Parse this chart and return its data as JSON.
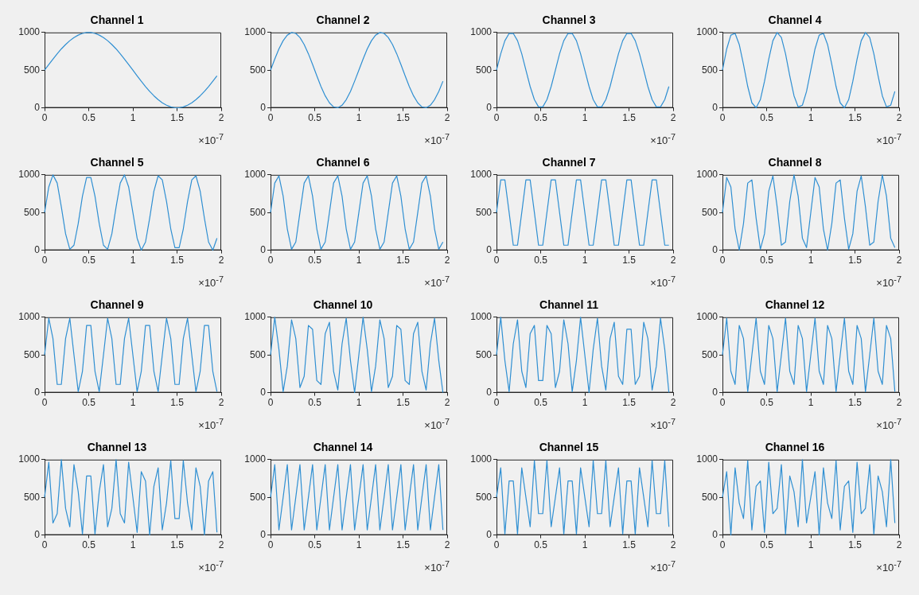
{
  "chart_data": [
    {
      "type": "line",
      "title": "Channel 1",
      "xlabel": "×10$^{-7}$",
      "color": "#2f8fd2",
      "xlim": [
        0,
        2
      ],
      "xticks": [
        0,
        0.5,
        1,
        1.5,
        2
      ],
      "ylim": [
        0,
        1000
      ],
      "yticks": [
        0,
        500,
        1000
      ],
      "x": [
        0,
        0.048,
        0.095,
        0.143,
        0.19,
        0.238,
        0.286,
        0.333,
        0.381,
        0.429,
        0.476,
        0.524,
        0.571,
        0.619,
        0.667,
        0.714,
        0.762,
        0.81,
        0.857,
        0.905,
        0.952,
        1,
        1.048,
        1.095,
        1.143,
        1.19,
        1.238,
        1.286,
        1.333,
        1.381,
        1.429,
        1.476,
        1.524,
        1.571,
        1.619,
        1.667,
        1.714,
        1.762,
        1.81,
        1.857,
        1.905,
        1.952
      ],
      "values": [
        500,
        575,
        647,
        717,
        782,
        840,
        891,
        933,
        965,
        987,
        999,
        999,
        987,
        965,
        933,
        891,
        840,
        782,
        717,
        647,
        575,
        500,
        425,
        353,
        283,
        218,
        160,
        109,
        67,
        35,
        13,
        1,
        1,
        13,
        35,
        67,
        109,
        160,
        218,
        283,
        353,
        425
      ]
    },
    {
      "type": "line",
      "title": "Channel 2",
      "xlabel": "×10$^{-7}$",
      "color": "#2f8fd2",
      "xlim": [
        0,
        2
      ],
      "xticks": [
        0,
        0.5,
        1,
        1.5,
        2
      ],
      "ylim": [
        0,
        1000
      ],
      "yticks": [
        0,
        500,
        1000
      ],
      "x": [
        0,
        0.048,
        0.095,
        0.143,
        0.19,
        0.238,
        0.286,
        0.333,
        0.381,
        0.429,
        0.476,
        0.524,
        0.571,
        0.619,
        0.667,
        0.714,
        0.762,
        0.81,
        0.857,
        0.905,
        0.952,
        1,
        1.048,
        1.095,
        1.143,
        1.19,
        1.238,
        1.286,
        1.333,
        1.381,
        1.429,
        1.476,
        1.524,
        1.571,
        1.619,
        1.667,
        1.714,
        1.762,
        1.81,
        1.857,
        1.905,
        1.952
      ],
      "values": [
        500,
        647,
        782,
        891,
        965,
        999,
        987,
        933,
        840,
        717,
        575,
        425,
        283,
        160,
        67,
        13,
        1,
        35,
        109,
        218,
        353,
        500,
        647,
        782,
        891,
        965,
        999,
        987,
        933,
        840,
        717,
        575,
        425,
        283,
        160,
        67,
        13,
        1,
        35,
        109,
        218,
        353
      ]
    },
    {
      "type": "line",
      "title": "Channel 3",
      "xlabel": "×10$^{-7}$",
      "color": "#2f8fd2",
      "xlim": [
        0,
        2
      ],
      "xticks": [
        0,
        0.5,
        1,
        1.5,
        2
      ],
      "ylim": [
        0,
        1000
      ],
      "yticks": [
        0,
        500,
        1000
      ],
      "x": [
        0,
        0.048,
        0.095,
        0.143,
        0.19,
        0.238,
        0.286,
        0.333,
        0.381,
        0.429,
        0.476,
        0.524,
        0.571,
        0.619,
        0.667,
        0.714,
        0.762,
        0.81,
        0.857,
        0.905,
        0.952,
        1,
        1.048,
        1.095,
        1.143,
        1.19,
        1.238,
        1.286,
        1.333,
        1.381,
        1.429,
        1.476,
        1.524,
        1.571,
        1.619,
        1.667,
        1.714,
        1.762,
        1.81,
        1.857,
        1.905,
        1.952
      ],
      "values": [
        500,
        717,
        891,
        987,
        987,
        891,
        717,
        500,
        283,
        109,
        13,
        13,
        109,
        283,
        500,
        717,
        891,
        987,
        987,
        891,
        717,
        500,
        283,
        109,
        13,
        13,
        109,
        283,
        500,
        717,
        891,
        987,
        987,
        891,
        717,
        500,
        283,
        109,
        13,
        13,
        109,
        283
      ]
    },
    {
      "type": "line",
      "title": "Channel 4",
      "xlabel": "×10$^{-7}$",
      "color": "#2f8fd2",
      "xlim": [
        0,
        2
      ],
      "xticks": [
        0,
        0.5,
        1,
        1.5,
        2
      ],
      "ylim": [
        0,
        1000
      ],
      "yticks": [
        0,
        500,
        1000
      ],
      "x": [
        0,
        0.048,
        0.095,
        0.143,
        0.19,
        0.238,
        0.286,
        0.333,
        0.381,
        0.429,
        0.476,
        0.524,
        0.571,
        0.619,
        0.667,
        0.714,
        0.762,
        0.81,
        0.857,
        0.905,
        0.952,
        1,
        1.048,
        1.095,
        1.143,
        1.19,
        1.238,
        1.286,
        1.333,
        1.381,
        1.429,
        1.476,
        1.524,
        1.571,
        1.619,
        1.667,
        1.714,
        1.762,
        1.81,
        1.857,
        1.905,
        1.952
      ],
      "values": [
        500,
        782,
        965,
        987,
        840,
        575,
        283,
        67,
        1,
        109,
        353,
        647,
        891,
        999,
        933,
        717,
        425,
        160,
        13,
        35,
        218,
        500,
        782,
        965,
        987,
        840,
        575,
        283,
        67,
        1,
        109,
        353,
        647,
        891,
        999,
        933,
        717,
        425,
        160,
        13,
        35,
        218
      ]
    },
    {
      "type": "line",
      "title": "Channel 5",
      "xlabel": "×10$^{-7}$",
      "color": "#2f8fd2",
      "xlim": [
        0,
        2
      ],
      "xticks": [
        0,
        0.5,
        1,
        1.5,
        2
      ],
      "ylim": [
        0,
        1000
      ],
      "yticks": [
        0,
        500,
        1000
      ],
      "x": [
        0,
        0.048,
        0.095,
        0.143,
        0.19,
        0.238,
        0.286,
        0.333,
        0.381,
        0.429,
        0.476,
        0.524,
        0.571,
        0.619,
        0.667,
        0.714,
        0.762,
        0.81,
        0.857,
        0.905,
        0.952,
        1,
        1.048,
        1.095,
        1.143,
        1.19,
        1.238,
        1.286,
        1.333,
        1.381,
        1.429,
        1.476,
        1.524,
        1.571,
        1.619,
        1.667,
        1.714,
        1.762,
        1.81,
        1.857,
        1.905,
        1.952
      ],
      "values": [
        500,
        840,
        999,
        891,
        575,
        218,
        13,
        67,
        353,
        717,
        965,
        965,
        717,
        353,
        67,
        13,
        218,
        575,
        891,
        999,
        840,
        500,
        160,
        1,
        109,
        425,
        782,
        987,
        933,
        647,
        283,
        35,
        35,
        283,
        647,
        933,
        987,
        782,
        425,
        109,
        1,
        160
      ]
    },
    {
      "type": "line",
      "title": "Channel 6",
      "xlabel": "×10$^{-7}$",
      "color": "#2f8fd2",
      "xlim": [
        0,
        2
      ],
      "xticks": [
        0,
        0.5,
        1,
        1.5,
        2
      ],
      "ylim": [
        0,
        1000
      ],
      "yticks": [
        0,
        500,
        1000
      ],
      "x": [
        0,
        0.048,
        0.095,
        0.143,
        0.19,
        0.238,
        0.286,
        0.333,
        0.381,
        0.429,
        0.476,
        0.524,
        0.571,
        0.619,
        0.667,
        0.714,
        0.762,
        0.81,
        0.857,
        0.905,
        0.952,
        1,
        1.048,
        1.095,
        1.143,
        1.19,
        1.238,
        1.286,
        1.333,
        1.381,
        1.429,
        1.476,
        1.524,
        1.571,
        1.619,
        1.667,
        1.714,
        1.762,
        1.81,
        1.857,
        1.905,
        1.952
      ],
      "values": [
        500,
        891,
        987,
        717,
        283,
        13,
        109,
        500,
        891,
        987,
        717,
        283,
        13,
        109,
        500,
        891,
        987,
        717,
        283,
        13,
        109,
        500,
        891,
        987,
        717,
        283,
        13,
        109,
        500,
        891,
        987,
        717,
        283,
        13,
        109,
        500,
        891,
        987,
        717,
        283,
        13,
        109
      ]
    },
    {
      "type": "line",
      "title": "Channel 7",
      "xlabel": "×10$^{-7}$",
      "color": "#2f8fd2",
      "xlim": [
        0,
        2
      ],
      "xticks": [
        0,
        0.5,
        1,
        1.5,
        2
      ],
      "ylim": [
        0,
        1000
      ],
      "yticks": [
        0,
        500,
        1000
      ],
      "x": [
        0,
        0.048,
        0.095,
        0.143,
        0.19,
        0.238,
        0.286,
        0.333,
        0.381,
        0.429,
        0.476,
        0.524,
        0.571,
        0.619,
        0.667,
        0.714,
        0.762,
        0.81,
        0.857,
        0.905,
        0.952,
        1,
        1.048,
        1.095,
        1.143,
        1.19,
        1.238,
        1.286,
        1.333,
        1.381,
        1.429,
        1.476,
        1.524,
        1.571,
        1.619,
        1.667,
        1.714,
        1.762,
        1.81,
        1.857,
        1.905,
        1.952
      ],
      "values": [
        500,
        933,
        933,
        500,
        67,
        67,
        500,
        933,
        933,
        500,
        67,
        67,
        500,
        933,
        933,
        500,
        67,
        67,
        500,
        933,
        933,
        500,
        67,
        67,
        500,
        933,
        933,
        500,
        67,
        67,
        500,
        933,
        933,
        500,
        67,
        67,
        500,
        933,
        933,
        500,
        67,
        67
      ]
    },
    {
      "type": "line",
      "title": "Channel 8",
      "xlabel": "×10$^{-7}$",
      "color": "#2f8fd2",
      "xlim": [
        0,
        2
      ],
      "xticks": [
        0,
        0.5,
        1,
        1.5,
        2
      ],
      "ylim": [
        0,
        1000
      ],
      "yticks": [
        0,
        500,
        1000
      ],
      "x": [
        0,
        0.048,
        0.095,
        0.143,
        0.19,
        0.238,
        0.286,
        0.333,
        0.381,
        0.429,
        0.476,
        0.524,
        0.571,
        0.619,
        0.667,
        0.714,
        0.762,
        0.81,
        0.857,
        0.905,
        0.952,
        1,
        1.048,
        1.095,
        1.143,
        1.19,
        1.238,
        1.286,
        1.333,
        1.381,
        1.429,
        1.476,
        1.524,
        1.571,
        1.619,
        1.667,
        1.714,
        1.762,
        1.81,
        1.857,
        1.905,
        1.952
      ],
      "values": [
        500,
        965,
        840,
        283,
        1,
        353,
        891,
        933,
        425,
        13,
        218,
        782,
        987,
        575,
        67,
        109,
        647,
        999,
        717,
        160,
        35,
        500,
        965,
        840,
        283,
        1,
        353,
        891,
        933,
        425,
        13,
        218,
        782,
        987,
        575,
        67,
        109,
        647,
        999,
        717,
        160,
        35
      ]
    },
    {
      "type": "line",
      "title": "Channel 9",
      "xlabel": "×10$^{-7}$",
      "color": "#2f8fd2",
      "xlim": [
        0,
        2
      ],
      "xticks": [
        0,
        0.5,
        1,
        1.5,
        2
      ],
      "ylim": [
        0,
        1000
      ],
      "yticks": [
        0,
        500,
        1000
      ],
      "x": [
        0,
        0.048,
        0.095,
        0.143,
        0.19,
        0.238,
        0.286,
        0.333,
        0.381,
        0.429,
        0.476,
        0.524,
        0.571,
        0.619,
        0.667,
        0.714,
        0.762,
        0.81,
        0.857,
        0.905,
        0.952,
        1,
        1.048,
        1.095,
        1.143,
        1.19,
        1.238,
        1.286,
        1.333,
        1.381,
        1.429,
        1.476,
        1.524,
        1.571,
        1.619,
        1.667,
        1.714,
        1.762,
        1.81,
        1.857,
        1.905,
        1.952
      ],
      "values": [
        500,
        987,
        717,
        109,
        109,
        717,
        987,
        500,
        13,
        283,
        891,
        891,
        283,
        13,
        500,
        987,
        717,
        109,
        109,
        717,
        987,
        500,
        13,
        283,
        891,
        891,
        283,
        13,
        500,
        987,
        717,
        109,
        109,
        717,
        987,
        500,
        13,
        283,
        891,
        891,
        283,
        13
      ]
    },
    {
      "type": "line",
      "title": "Channel 10",
      "xlabel": "×10$^{-7}$",
      "color": "#2f8fd2",
      "xlim": [
        0,
        2
      ],
      "xticks": [
        0,
        0.5,
        1,
        1.5,
        2
      ],
      "ylim": [
        0,
        1000
      ],
      "yticks": [
        0,
        500,
        1000
      ],
      "x": [
        0,
        0.048,
        0.095,
        0.143,
        0.19,
        0.238,
        0.286,
        0.333,
        0.381,
        0.429,
        0.476,
        0.524,
        0.571,
        0.619,
        0.667,
        0.714,
        0.762,
        0.81,
        0.857,
        0.905,
        0.952,
        1,
        1.048,
        1.095,
        1.143,
        1.19,
        1.238,
        1.286,
        1.333,
        1.381,
        1.429,
        1.476,
        1.524,
        1.571,
        1.619,
        1.667,
        1.714,
        1.762,
        1.81,
        1.857,
        1.905,
        1.952
      ],
      "values": [
        500,
        999,
        575,
        13,
        353,
        965,
        717,
        67,
        218,
        891,
        840,
        160,
        109,
        782,
        933,
        283,
        35,
        647,
        987,
        425,
        1,
        500,
        999,
        575,
        13,
        353,
        965,
        717,
        67,
        218,
        891,
        840,
        160,
        109,
        782,
        933,
        283,
        35,
        647,
        987,
        425,
        1
      ]
    },
    {
      "type": "line",
      "title": "Channel 11",
      "xlabel": "×10$^{-7}$",
      "color": "#2f8fd2",
      "xlim": [
        0,
        2
      ],
      "xticks": [
        0,
        0.5,
        1,
        1.5,
        2
      ],
      "ylim": [
        0,
        1000
      ],
      "yticks": [
        0,
        500,
        1000
      ],
      "x": [
        0,
        0.048,
        0.095,
        0.143,
        0.19,
        0.238,
        0.286,
        0.333,
        0.381,
        0.429,
        0.476,
        0.524,
        0.571,
        0.619,
        0.667,
        0.714,
        0.762,
        0.81,
        0.857,
        0.905,
        0.952,
        1,
        1.048,
        1.095,
        1.143,
        1.19,
        1.238,
        1.286,
        1.333,
        1.381,
        1.429,
        1.476,
        1.524,
        1.571,
        1.619,
        1.667,
        1.714,
        1.762,
        1.81,
        1.857,
        1.905,
        1.952
      ],
      "values": [
        500,
        999,
        425,
        13,
        647,
        965,
        283,
        67,
        782,
        891,
        160,
        160,
        891,
        782,
        67,
        283,
        965,
        647,
        13,
        425,
        999,
        500,
        1,
        575,
        987,
        353,
        35,
        717,
        933,
        218,
        109,
        840,
        840,
        109,
        218,
        933,
        717,
        35,
        353,
        987,
        575,
        1
      ]
    },
    {
      "type": "line",
      "title": "Channel 12",
      "xlabel": "×10$^{-7}$",
      "color": "#2f8fd2",
      "xlim": [
        0,
        2
      ],
      "xticks": [
        0,
        0.5,
        1,
        1.5,
        2
      ],
      "ylim": [
        0,
        1000
      ],
      "yticks": [
        0,
        500,
        1000
      ],
      "x": [
        0,
        0.048,
        0.095,
        0.143,
        0.19,
        0.238,
        0.286,
        0.333,
        0.381,
        0.429,
        0.476,
        0.524,
        0.571,
        0.619,
        0.667,
        0.714,
        0.762,
        0.81,
        0.857,
        0.905,
        0.952,
        1,
        1.048,
        1.095,
        1.143,
        1.19,
        1.238,
        1.286,
        1.333,
        1.381,
        1.429,
        1.476,
        1.524,
        1.571,
        1.619,
        1.667,
        1.714,
        1.762,
        1.81,
        1.857,
        1.905,
        1.952
      ],
      "values": [
        500,
        987,
        283,
        109,
        891,
        717,
        13,
        500,
        987,
        283,
        109,
        891,
        717,
        13,
        500,
        987,
        283,
        109,
        891,
        717,
        13,
        500,
        987,
        283,
        109,
        891,
        717,
        13,
        500,
        987,
        283,
        109,
        891,
        717,
        13,
        500,
        987,
        283,
        109,
        891,
        717,
        13
      ]
    },
    {
      "type": "line",
      "title": "Channel 13",
      "xlabel": "×10$^{-7}$",
      "color": "#2f8fd2",
      "xlim": [
        0,
        2
      ],
      "xticks": [
        0,
        0.5,
        1,
        1.5,
        2
      ],
      "ylim": [
        0,
        1000
      ],
      "yticks": [
        0,
        500,
        1000
      ],
      "x": [
        0,
        0.048,
        0.095,
        0.143,
        0.19,
        0.238,
        0.286,
        0.333,
        0.381,
        0.429,
        0.476,
        0.524,
        0.571,
        0.619,
        0.667,
        0.714,
        0.762,
        0.81,
        0.857,
        0.905,
        0.952,
        1,
        1.048,
        1.095,
        1.143,
        1.19,
        1.238,
        1.286,
        1.333,
        1.381,
        1.429,
        1.476,
        1.524,
        1.571,
        1.619,
        1.667,
        1.714,
        1.762,
        1.81,
        1.857,
        1.905,
        1.952
      ],
      "values": [
        500,
        965,
        160,
        283,
        999,
        353,
        109,
        933,
        575,
        13,
        782,
        782,
        13,
        575,
        933,
        109,
        353,
        999,
        283,
        160,
        965,
        500,
        35,
        840,
        717,
        1,
        647,
        891,
        67,
        425,
        987,
        218,
        218,
        987,
        425,
        67,
        891,
        647,
        1,
        717,
        840,
        35
      ]
    },
    {
      "type": "line",
      "title": "Channel 14",
      "xlabel": "×10$^{-7}$",
      "color": "#2f8fd2",
      "xlim": [
        0,
        2
      ],
      "xticks": [
        0,
        0.5,
        1,
        1.5,
        2
      ],
      "ylim": [
        0,
        1000
      ],
      "yticks": [
        0,
        500,
        1000
      ],
      "x": [
        0,
        0.048,
        0.095,
        0.143,
        0.19,
        0.238,
        0.286,
        0.333,
        0.381,
        0.429,
        0.476,
        0.524,
        0.571,
        0.619,
        0.667,
        0.714,
        0.762,
        0.81,
        0.857,
        0.905,
        0.952,
        1,
        1.048,
        1.095,
        1.143,
        1.19,
        1.238,
        1.286,
        1.333,
        1.381,
        1.429,
        1.476,
        1.524,
        1.571,
        1.619,
        1.667,
        1.714,
        1.762,
        1.81,
        1.857,
        1.905,
        1.952
      ],
      "values": [
        500,
        933,
        67,
        500,
        933,
        67,
        500,
        933,
        67,
        500,
        933,
        67,
        500,
        933,
        67,
        500,
        933,
        67,
        500,
        933,
        67,
        500,
        933,
        67,
        500,
        933,
        67,
        500,
        933,
        67,
        500,
        933,
        67,
        500,
        933,
        67,
        500,
        933,
        67,
        500,
        933,
        67
      ]
    },
    {
      "type": "line",
      "title": "Channel 15",
      "xlabel": "×10$^{-7}$",
      "color": "#2f8fd2",
      "xlim": [
        0,
        2
      ],
      "xticks": [
        0,
        0.5,
        1,
        1.5,
        2
      ],
      "ylim": [
        0,
        1000
      ],
      "yticks": [
        0,
        500,
        1000
      ],
      "x": [
        0,
        0.048,
        0.095,
        0.143,
        0.19,
        0.238,
        0.286,
        0.333,
        0.381,
        0.429,
        0.476,
        0.524,
        0.571,
        0.619,
        0.667,
        0.714,
        0.762,
        0.81,
        0.857,
        0.905,
        0.952,
        1,
        1.048,
        1.095,
        1.143,
        1.19,
        1.238,
        1.286,
        1.333,
        1.381,
        1.429,
        1.476,
        1.524,
        1.571,
        1.619,
        1.667,
        1.714,
        1.762,
        1.81,
        1.857,
        1.905,
        1.952
      ],
      "values": [
        500,
        891,
        13,
        717,
        717,
        13,
        891,
        500,
        109,
        987,
        283,
        283,
        987,
        109,
        500,
        891,
        13,
        717,
        717,
        13,
        891,
        500,
        109,
        987,
        283,
        283,
        987,
        109,
        500,
        891,
        13,
        717,
        717,
        13,
        891,
        500,
        109,
        987,
        283,
        283,
        987,
        109
      ]
    },
    {
      "type": "line",
      "title": "Channel 16",
      "xlabel": "×10$^{-7}$",
      "color": "#2f8fd2",
      "xlim": [
        0,
        2
      ],
      "xticks": [
        0,
        0.5,
        1,
        1.5,
        2
      ],
      "ylim": [
        0,
        1000
      ],
      "yticks": [
        0,
        500,
        1000
      ],
      "x": [
        0,
        0.048,
        0.095,
        0.143,
        0.19,
        0.238,
        0.286,
        0.333,
        0.381,
        0.429,
        0.476,
        0.524,
        0.571,
        0.619,
        0.667,
        0.714,
        0.762,
        0.81,
        0.857,
        0.905,
        0.952,
        1,
        1.048,
        1.095,
        1.143,
        1.19,
        1.238,
        1.286,
        1.333,
        1.381,
        1.429,
        1.476,
        1.524,
        1.571,
        1.619,
        1.667,
        1.714,
        1.762,
        1.81,
        1.857,
        1.905,
        1.952
      ],
      "values": [
        500,
        840,
        1,
        891,
        425,
        218,
        987,
        67,
        647,
        717,
        35,
        965,
        283,
        353,
        933,
        13,
        782,
        575,
        109,
        999,
        160,
        500,
        840,
        1,
        891,
        425,
        218,
        987,
        67,
        647,
        717,
        35,
        965,
        283,
        353,
        933,
        13,
        782,
        575,
        109,
        999,
        160
      ]
    }
  ]
}
